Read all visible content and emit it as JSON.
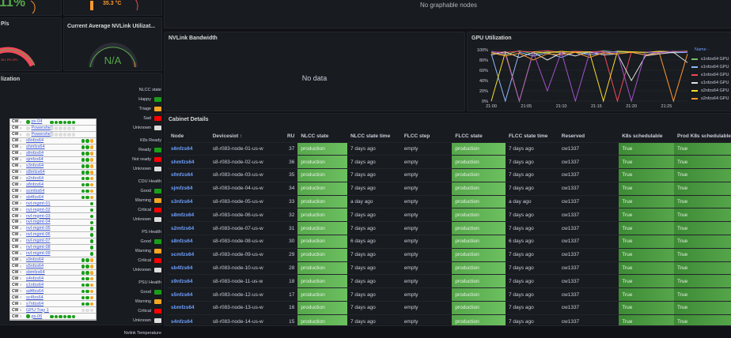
{
  "gauges": [
    {
      "title": "",
      "value": "11%",
      "color": "#56a64b",
      "fill": 0.11
    },
    {
      "title": "",
      "value": "35.3 °C",
      "color": "#ff9830",
      "fill": 0.4
    },
    {
      "title": "P/s",
      "value": "38.1 PFLOPS",
      "color": "#f2495c",
      "fill": 0.95
    },
    {
      "title": "Current Average NVLink Utilizat...",
      "value": "N/A",
      "color": "#56a64b",
      "fill": 0
    }
  ],
  "top_panel": {
    "message": "No graphable nodes"
  },
  "nvlink_bandwidth": {
    "title": "NVLink Bandwidth",
    "message": "No data"
  },
  "rack_panel": {
    "title": "lization",
    "items": [
      {
        "cw": "CW",
        "name": "ps-04",
        "dots": [
          "#1a9e1a",
          "#1a9e1a",
          "#1a9e1a",
          "#1a9e1a",
          "#1a9e1a",
          "#1a9e1a"
        ],
        "status": "#1a9e1a"
      },
      {
        "cw": "CW",
        "name": "Powershelf",
        "dots": [
          "#ddd",
          "#ddd",
          "#ddd",
          "#ddd",
          "#ddd",
          "#ddd"
        ],
        "status": "#ddd"
      },
      {
        "cw": "CW",
        "name": "Powershelf",
        "dots": [
          "#ddd",
          "#ddd",
          "#ddd",
          "#ddd",
          "#ddd",
          "#ddd"
        ],
        "status": "#ddd"
      },
      {
        "cw": "CW",
        "name": "s6nfzs64",
        "dots": [
          "#1a9e1a",
          "#1a9e1a",
          "#f5a623"
        ]
      },
      {
        "cw": "CW",
        "name": "shmfzs64",
        "dots": [
          "#1a9e1a",
          "#1a9e1a",
          "#f5a623"
        ]
      },
      {
        "cw": "CW",
        "name": "sfmfzs64",
        "dots": [
          "#1a9e1a",
          "#1a9e1a",
          "#f5a623"
        ]
      },
      {
        "cw": "CW",
        "name": "sjmfzs64",
        "dots": [
          "#1a9e1a",
          "#1a9e1a",
          "#f5a623"
        ]
      },
      {
        "cw": "CW",
        "name": "s3nfzs64",
        "dots": [
          "#1a9e1a",
          "#1a9e1a",
          "#f5a623"
        ]
      },
      {
        "cw": "CW",
        "name": "s8mfzs64",
        "dots": [
          "#1a9e1a",
          "#1a9e1a",
          "#f5a623"
        ]
      },
      {
        "cw": "CW",
        "name": "s2nfzs64",
        "dots": [
          "#1a9e1a",
          "#1a9e1a",
          "#f5a623"
        ]
      },
      {
        "cw": "CW",
        "name": "s8nfzs64",
        "dots": [
          "#1a9e1a",
          "#1a9e1a",
          "#f5a623"
        ]
      },
      {
        "cw": "CW",
        "name": "scmfzs64",
        "dots": [
          "#1a9e1a",
          "#1a9e1a",
          "#f5a623"
        ]
      },
      {
        "cw": "CW",
        "name": "sb4fzs64",
        "dots": [
          "#1a9e1a",
          "#1a9e1a",
          "#f5a623"
        ]
      },
      {
        "cw": "CW",
        "name": "nvl-mgmt-01",
        "dots": [
          "#1a9e1a"
        ]
      },
      {
        "cw": "CW",
        "name": "nvl-mgmt-02",
        "dots": [
          "#1a9e1a"
        ]
      },
      {
        "cw": "CW",
        "name": "nvl-mgmt-03",
        "dots": [
          "#1a9e1a"
        ]
      },
      {
        "cw": "CW",
        "name": "nvl-mgmt-04",
        "dots": [
          "#1a9e1a"
        ]
      },
      {
        "cw": "CW",
        "name": "nvl-mgmt-05",
        "dots": [
          "#1a9e1a"
        ]
      },
      {
        "cw": "CW",
        "name": "nvl-mgmt-06",
        "dots": [
          "#1a9e1a"
        ]
      },
      {
        "cw": "CW",
        "name": "nvl-mgmt-07",
        "dots": [
          "#1a9e1a"
        ]
      },
      {
        "cw": "CW",
        "name": "nvl-mgmt-08",
        "dots": [
          "#1a9e1a"
        ]
      },
      {
        "cw": "CW",
        "name": "nvl-mgmt-09",
        "dots": [
          "#1a9e1a"
        ]
      },
      {
        "cw": "CW",
        "name": "s9nfzs64",
        "dots": [
          "#1a9e1a",
          "#1a9e1a",
          "#f5a623"
        ]
      },
      {
        "cw": "CW",
        "name": "s5nfzs64",
        "dots": [
          "#1a9e1a",
          "#1a9e1a",
          "#f5a623"
        ]
      },
      {
        "cw": "CW",
        "name": "sbmfzs64",
        "dots": [
          "#1a9e1a",
          "#1a9e1a",
          "#f5a623"
        ]
      },
      {
        "cw": "CW",
        "name": "s4nfzs64",
        "dots": [
          "#1a9e1a",
          "#1a9e1a",
          "#f5a623"
        ]
      },
      {
        "cw": "CW",
        "name": "s1nfzs64",
        "dots": [
          "#1a9e1a",
          "#1a9e1a",
          "#f5a623"
        ]
      },
      {
        "cw": "CW",
        "name": "sd4fzs64",
        "dots": [
          "#1a9e1a",
          "#1a9e1a",
          "#f5a623"
        ]
      },
      {
        "cw": "CW",
        "name": "sc4fzs64",
        "dots": [
          "#1a9e1a",
          "#1a9e1a",
          "#f5a623"
        ]
      },
      {
        "cw": "CW",
        "name": "s7nfzs64",
        "dots": [
          "#1a9e1a",
          "#1a9e1a",
          "#f5a623"
        ]
      },
      {
        "cw": "CW",
        "name": "GPU Tray 1",
        "dots": [
          "#ddd",
          "#ddd",
          "#ddd"
        ]
      },
      {
        "cw": "CW",
        "name": "ps-06",
        "dots": [
          "#1a9e1a",
          "#1a9e1a",
          "#1a9e1a",
          "#1a9e1a",
          "#1a9e1a",
          "#1a9e1a"
        ],
        "status": "#1a9e1a"
      }
    ],
    "legend": [
      {
        "title": "NLCC state",
        "items": [
          {
            "label": "Happy",
            "color": "#1a9e1a"
          },
          {
            "label": "Triage",
            "color": "#f5a623"
          },
          {
            "label": "Sad",
            "color": "#f00"
          },
          {
            "label": "Unknown",
            "color": "#ddd"
          }
        ]
      },
      {
        "title": "K8s Ready",
        "items": [
          {
            "label": "Ready",
            "color": "#1a9e1a"
          },
          {
            "label": "Not ready",
            "color": "#f00"
          },
          {
            "label": "Unknown",
            "color": "#ddd"
          }
        ]
      },
      {
        "title": "CDU Health",
        "items": [
          {
            "label": "Good",
            "color": "#1a9e1a"
          },
          {
            "label": "Warning",
            "color": "#f5a623"
          },
          {
            "label": "Critical",
            "color": "#f00"
          },
          {
            "label": "Unknown",
            "color": "#ddd"
          }
        ]
      },
      {
        "title": "PS Health",
        "items": [
          {
            "label": "Good",
            "color": "#1a9e1a"
          },
          {
            "label": "Warning",
            "color": "#f5a623"
          },
          {
            "label": "Critical",
            "color": "#f00"
          },
          {
            "label": "Unknown",
            "color": "#ddd"
          }
        ]
      },
      {
        "title": "PSU Health",
        "items": [
          {
            "label": "Good",
            "color": "#1a9e1a"
          },
          {
            "label": "Warning",
            "color": "#f5a623"
          },
          {
            "label": "Critical",
            "color": "#f00"
          },
          {
            "label": "Unknown",
            "color": "#ddd"
          }
        ]
      },
      {
        "title": "Nvlink Temperature",
        "items": []
      }
    ]
  },
  "gpu_utilization": {
    "title": "GPU Utilization",
    "legend_header": "Name -",
    "chart_data": {
      "type": "line",
      "title": "GPU Utilization",
      "x": [
        "21:00",
        "21:02",
        "21:04",
        "21:06",
        "21:08",
        "21:10",
        "21:12",
        "21:14",
        "21:16",
        "21:18",
        "21:20",
        "21:22",
        "21:24",
        "21:26",
        "21:28"
      ],
      "xticks": [
        "21:00",
        "21:05",
        "21:10",
        "21:15",
        "21:20",
        "21:25"
      ],
      "yticks": [
        "0%",
        "20%",
        "40%",
        "60%",
        "80%",
        "100%"
      ],
      "ylim": [
        0,
        100
      ],
      "legend": "right",
      "series": [
        {
          "name": "s1nfzs64 GPU",
          "color": "#73bf69",
          "values": [
            95,
            90,
            98,
            92,
            96,
            94,
            97,
            93,
            98,
            95,
            96,
            94,
            97,
            95,
            96
          ]
        },
        {
          "name": "s1nfzs64 GPU",
          "color": "#8ab8ff",
          "values": [
            92,
            0,
            95,
            88,
            94,
            85,
            96,
            90,
            93,
            97,
            95,
            90,
            96,
            94,
            95
          ]
        },
        {
          "name": "s1nfzs64 GPU",
          "color": "#f2495c",
          "values": [
            96,
            95,
            97,
            96,
            98,
            95,
            97,
            96,
            97,
            0,
            96,
            95,
            97,
            96,
            97
          ]
        },
        {
          "name": "s1nfzs64 GPU",
          "color": "#e0e0e0",
          "values": [
            90,
            96,
            85,
            95,
            80,
            94,
            88,
            96,
            90,
            92,
            40,
            88,
            92,
            95,
            75
          ]
        },
        {
          "name": "s2nfzs64 GPU",
          "color": "#fade2a",
          "values": [
            0,
            95,
            0,
            96,
            94,
            97,
            95,
            96,
            0,
            97,
            96,
            95,
            97,
            96,
            97
          ]
        },
        {
          "name": "s2nfzs64 GPU",
          "color": "#ff9830",
          "values": [
            94,
            88,
            93,
            80,
            92,
            90,
            95,
            85,
            94,
            92,
            95,
            90,
            93,
            0,
            92
          ]
        },
        {
          "name": "",
          "color": "#a352cc",
          "values": [
            97,
            92,
            0,
            95,
            20,
            96,
            0,
            93,
            96,
            95,
            0,
            96,
            94,
            97,
            96
          ]
        }
      ]
    }
  },
  "cabinet": {
    "title": "Cabinet Details",
    "columns": [
      "Node",
      "Devicesiot ↑",
      "RU",
      "NLCC state",
      "NLCC state time",
      "FLCC step",
      "FLCC state",
      "FLCC state time",
      "Reserved",
      "",
      "K8s schedulable",
      "Prod K8s schedulable"
    ],
    "rows": [
      [
        "s6nfzs64",
        "s8-r083-node-01-us-w",
        "37",
        "production",
        "7 days ago",
        "empty",
        "production",
        "7 days ago",
        "cw1337",
        "",
        "True",
        "True"
      ],
      [
        "shmfzs64",
        "s8-r083-node-02-us-w",
        "36",
        "production",
        "7 days ago",
        "empty",
        "production",
        "7 days ago",
        "cw1337",
        "",
        "True",
        "True"
      ],
      [
        "sfmfzs64",
        "s8-r083-node-03-us-w",
        "35",
        "production",
        "7 days ago",
        "empty",
        "production",
        "7 days ago",
        "cw1337",
        "",
        "True",
        "True"
      ],
      [
        "sjmfzs64",
        "s8-r083-node-04-us-w",
        "34",
        "production",
        "7 days ago",
        "empty",
        "production",
        "7 days ago",
        "cw1337",
        "",
        "True",
        "True"
      ],
      [
        "s3nfzs64",
        "s8-r083-node-05-us-w",
        "33",
        "production",
        "a day ago",
        "empty",
        "production",
        "a day ago",
        "cw1337",
        "",
        "True",
        "True"
      ],
      [
        "s8mfzs64",
        "s8-r083-node-06-us-w",
        "32",
        "production",
        "7 days ago",
        "empty",
        "production",
        "7 days ago",
        "cw1337",
        "",
        "True",
        "True"
      ],
      [
        "s2mfzs64",
        "s8-r083-node-07-us-w",
        "31",
        "production",
        "7 days ago",
        "empty",
        "production",
        "7 days ago",
        "cw1337",
        "",
        "True",
        "True"
      ],
      [
        "s8nfzs64",
        "s8-r083-node-08-us-w",
        "30",
        "production",
        "6 days ago",
        "empty",
        "production",
        "6 days ago",
        "cw1337",
        "",
        "True",
        "True"
      ],
      [
        "scmfzs64",
        "s8-r083-node-09-us-w",
        "29",
        "production",
        "7 days ago",
        "empty",
        "production",
        "7 days ago",
        "cw1337",
        "",
        "True",
        "True"
      ],
      [
        "sb4fzs64",
        "s8-r083-node-10-us-w",
        "28",
        "production",
        "7 days ago",
        "empty",
        "production",
        "7 days ago",
        "cw1337",
        "",
        "True",
        "True"
      ],
      [
        "s9nfzs64",
        "s8-r083-node-11-us-w",
        "18",
        "production",
        "7 days ago",
        "empty",
        "production",
        "7 days ago",
        "cw1337",
        "",
        "True",
        "True"
      ],
      [
        "s5nfzs64",
        "s8-r083-node-12-us-w",
        "17",
        "production",
        "7 days ago",
        "empty",
        "production",
        "7 days ago",
        "cw1337",
        "",
        "True",
        "True"
      ],
      [
        "sbmfzs64",
        "s8-r083-node-13-us-w",
        "16",
        "production",
        "7 days ago",
        "empty",
        "production",
        "7 days ago",
        "cw1337",
        "",
        "True",
        "True"
      ],
      [
        "s4nfzs64",
        "s8-r083-node-14-us-w",
        "15",
        "production",
        "7 days ago",
        "empty",
        "production",
        "7 days ago",
        "cw1337",
        "",
        "True",
        "True"
      ]
    ]
  }
}
